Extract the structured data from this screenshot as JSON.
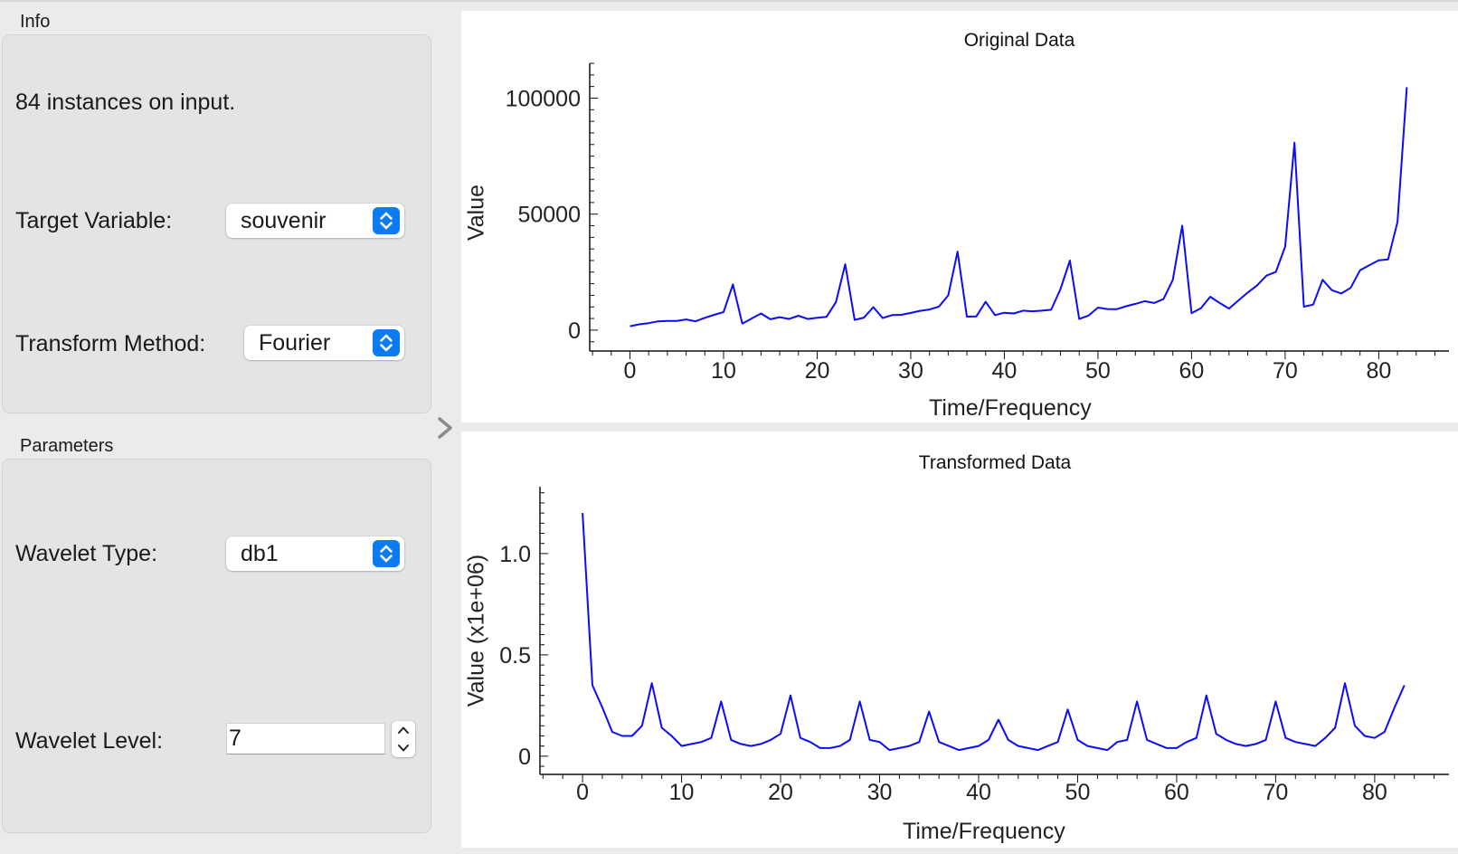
{
  "info": {
    "title": "Info",
    "instances_text": "84 instances on input.",
    "target_variable_label": "Target Variable:",
    "target_variable_value": "souvenir",
    "transform_method_label": "Transform Method:",
    "transform_method_value": "Fourier"
  },
  "parameters": {
    "title": "Parameters",
    "wavelet_type_label": "Wavelet Type:",
    "wavelet_type_value": "db1",
    "wavelet_level_label": "Wavelet Level:",
    "wavelet_level_value": "7"
  },
  "colors": {
    "line": "#0b0bff",
    "accent": "#0a7bf0"
  },
  "chart_data": [
    {
      "type": "line",
      "title": "Original Data",
      "xlabel": "Time/Frequency",
      "ylabel": "Value",
      "xlim": [
        -4.3,
        87.5
      ],
      "ylim": [
        -9000,
        115000
      ],
      "xticks": [
        0,
        10,
        20,
        30,
        40,
        50,
        60,
        70,
        80
      ],
      "yticks": [
        0,
        50000,
        100000
      ],
      "ytick_labels": [
        "0",
        "50000",
        "100000"
      ],
      "grid": false,
      "series": [
        {
          "values": [
            1700,
            2500,
            3000,
            3800,
            4000,
            4000,
            4600,
            3800,
            5300,
            6600,
            7800,
            19700,
            2800,
            5000,
            7200,
            4700,
            5600,
            4800,
            6200,
            4800,
            5300,
            5700,
            12000,
            28400,
            4400,
            5400,
            9900,
            5200,
            6500,
            6600,
            7400,
            8300,
            8900,
            10100,
            15000,
            33800,
            5800,
            5900,
            12200,
            6500,
            7500,
            7200,
            8400,
            8100,
            8400,
            8800,
            17700,
            30000,
            4800,
            6300,
            9700,
            9100,
            9000,
            10300,
            11300,
            12500,
            11700,
            13400,
            21700,
            45000,
            7300,
            9500,
            14400,
            11700,
            9300,
            12800,
            16200,
            19300,
            23500,
            25100,
            36000,
            80800,
            10100,
            11000,
            21700,
            17200,
            15800,
            18200,
            25800,
            28000,
            30100,
            30500,
            46600,
            104700
          ]
        }
      ]
    },
    {
      "type": "line",
      "title": "Transformed Data",
      "xlabel": "Time/Frequency",
      "ylabel": "Value (x1e+06)",
      "xlim": [
        -4.3,
        87.5
      ],
      "ylim": [
        -0.09,
        1.33
      ],
      "xticks": [
        0,
        10,
        20,
        30,
        40,
        50,
        60,
        70,
        80
      ],
      "yticks": [
        0,
        0.5,
        1.0
      ],
      "ytick_labels": [
        "0",
        "0.5",
        "1.0"
      ],
      "grid": false,
      "series": [
        {
          "values": [
            1.2,
            0.35,
            0.24,
            0.12,
            0.1,
            0.1,
            0.15,
            0.36,
            0.14,
            0.1,
            0.05,
            0.06,
            0.07,
            0.09,
            0.27,
            0.08,
            0.06,
            0.05,
            0.06,
            0.08,
            0.11,
            0.3,
            0.09,
            0.07,
            0.04,
            0.04,
            0.05,
            0.08,
            0.27,
            0.08,
            0.07,
            0.03,
            0.04,
            0.05,
            0.07,
            0.22,
            0.07,
            0.05,
            0.03,
            0.04,
            0.05,
            0.08,
            0.18,
            0.08,
            0.05,
            0.04,
            0.03,
            0.05,
            0.07,
            0.23,
            0.08,
            0.05,
            0.04,
            0.03,
            0.07,
            0.08,
            0.27,
            0.08,
            0.06,
            0.04,
            0.04,
            0.07,
            0.09,
            0.3,
            0.11,
            0.08,
            0.06,
            0.05,
            0.06,
            0.08,
            0.27,
            0.09,
            0.07,
            0.06,
            0.05,
            0.09,
            0.14,
            0.36,
            0.15,
            0.1,
            0.09,
            0.12,
            0.24,
            0.35
          ]
        }
      ]
    }
  ]
}
